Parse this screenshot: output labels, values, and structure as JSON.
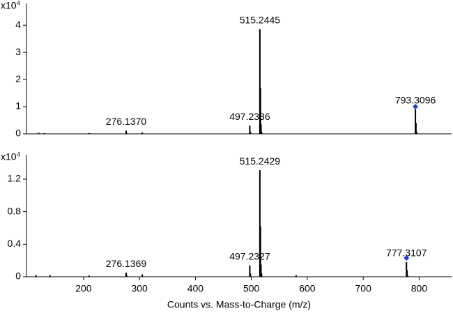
{
  "chart_data": [
    {
      "type": "spectrum",
      "y_multiplier": "x10",
      "y_exponent": 4,
      "x": [
        120,
        130,
        210,
        276.137,
        277.1,
        305,
        497.2336,
        498.2,
        515.2445,
        516.2478,
        517.25,
        518.25,
        793.3096,
        794.31,
        795.3
      ],
      "values": [
        0.04,
        0.03,
        0.03,
        0.12,
        0.04,
        0.05,
        0.3,
        0.08,
        3.85,
        1.7,
        0.35,
        0.08,
        0.9,
        0.4,
        0.08
      ],
      "x_labels": [
        null,
        null,
        null,
        "276.1370",
        null,
        null,
        "497.2336",
        null,
        "515.2445",
        null,
        null,
        null,
        "793.3096",
        null,
        null
      ],
      "color": "#000000",
      "precursor": {
        "x": 793.3096,
        "y": 1.0,
        "color": "#1f3fd0"
      },
      "xlim": [
        98,
        858
      ],
      "ylim": [
        0,
        4.8
      ],
      "yticks": [
        0,
        1,
        2,
        3,
        4
      ]
    },
    {
      "type": "spectrum",
      "y_multiplier": "x10",
      "y_exponent": 4,
      "x": [
        115,
        140,
        210,
        276.1369,
        277.1,
        305,
        497.2327,
        498.2,
        515.2429,
        516.2462,
        517.25,
        518.25,
        580,
        777.3107,
        778.31,
        779.3
      ],
      "values": [
        0.02,
        0.02,
        0.015,
        0.05,
        0.02,
        0.03,
        0.14,
        0.04,
        1.31,
        0.62,
        0.15,
        0.04,
        0.02,
        0.18,
        0.08,
        0.02
      ],
      "x_labels": [
        null,
        null,
        null,
        "276.1369",
        null,
        null,
        "497.2327",
        null,
        "515.2429",
        null,
        null,
        null,
        null,
        "777.3107",
        null,
        null
      ],
      "color": "#000000",
      "precursor": {
        "x": 777.3107,
        "y": 0.23,
        "color": "#1f3fd0"
      },
      "xlim": [
        98,
        858
      ],
      "ylim": [
        0,
        1.5
      ],
      "yticks": [
        0,
        {
          "value": 0.4,
          "label": "0.4"
        },
        {
          "value": 0.8,
          "label": "0.8"
        },
        {
          "value": 1.2,
          "label": "1.2"
        }
      ],
      "xticks": [
        200,
        300,
        400,
        500,
        600,
        700,
        800
      ],
      "xlabel": "Counts vs. Mass-to-Charge (m/z)"
    }
  ]
}
